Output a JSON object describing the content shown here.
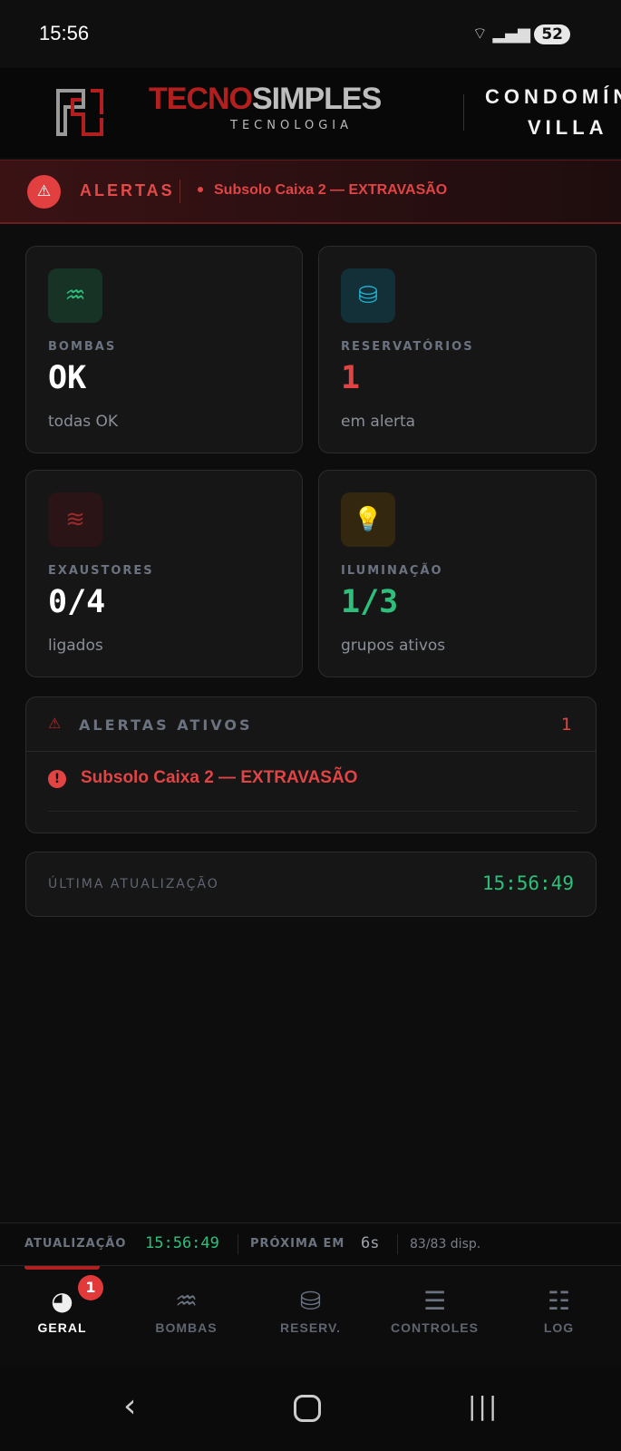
{
  "status": {
    "time": "15:56",
    "battery": "52"
  },
  "header": {
    "brand_a": "TECNO",
    "brand_b": "SIMPLES",
    "tagline": "TECNOLOGIA",
    "condo_line1": "CONDOMÍN",
    "condo_line2": "VILLA"
  },
  "alert_bar": {
    "title": "ALERTAS",
    "message": "Subsolo Caixa 2 — EXTRAVASÃO"
  },
  "cards": [
    {
      "label": "BOMBAS",
      "value": "OK",
      "sub": "todas OK",
      "icon": "pool-icon",
      "color": "#ffffff"
    },
    {
      "label": "RESERVATÓRIOS",
      "value": "1",
      "sub": "em alerta",
      "icon": "database-icon",
      "color": "#e24444"
    },
    {
      "label": "EXAUSTORES",
      "value": "0/4",
      "sub": "ligados",
      "icon": "wind-icon",
      "color": "#ffffff"
    },
    {
      "label": "ILUMINAÇÃO",
      "value": "1/3",
      "sub": "grupos ativos",
      "icon": "lightbulb-icon",
      "color": "#2ec07a"
    }
  ],
  "active_alerts": {
    "title": "ALERTAS ATIVOS",
    "count": "1",
    "items": [
      "Subsolo Caixa 2 — EXTRAVASÃO"
    ]
  },
  "last_update": {
    "label": "ÚLTIMA ATUALIZAÇÃO",
    "time": "15:56:49"
  },
  "footer": {
    "update_label": "ATUALIZAÇÃO",
    "update_time": "15:56:49",
    "next_label": "PRÓXIMA EM",
    "next_value": "6s",
    "devices": "83/83 disp."
  },
  "nav": [
    {
      "label": "GERAL",
      "badge": "1",
      "active": true
    },
    {
      "label": "BOMBAS"
    },
    {
      "label": "RESERV."
    },
    {
      "label": "CONTROLES"
    },
    {
      "label": "LOG"
    }
  ],
  "colors": {
    "accent_red": "#e24444",
    "accent_green": "#2ec07a"
  }
}
